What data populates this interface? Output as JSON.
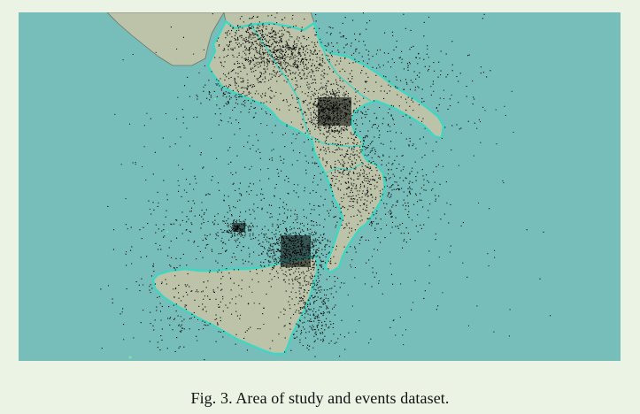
{
  "figure": {
    "caption": "Fig. 3. Area of study and events dataset."
  },
  "map": {
    "colors": {
      "sea": "#77bdb9",
      "land": "#bcc3a9",
      "study_area_outline": "#3fd6c4",
      "border": "#6f7569",
      "events": "#000000",
      "page_background": "#ebf3e4"
    }
  }
}
